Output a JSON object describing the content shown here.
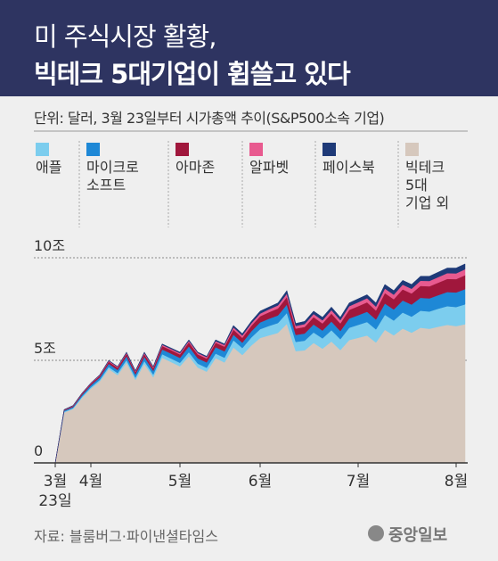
{
  "title": "미 주식시장 활황,",
  "subtitle": "빅테크 5대기업이 휩쓸고 있다",
  "chart_data": {
    "type": "stacked_area",
    "note": "단위: 달러, 3월 23일부터 시가총액 추이(S&P500소속 기업)",
    "categories": [
      "3월\n23일",
      null,
      null,
      null,
      "4월",
      null,
      null,
      null,
      null,
      null,
      null,
      null,
      null,
      null,
      "5월",
      null,
      null,
      null,
      null,
      null,
      null,
      null,
      null,
      "6월",
      null,
      null,
      null,
      null,
      null,
      null,
      null,
      null,
      null,
      null,
      "7월",
      null,
      null,
      null,
      null,
      null,
      null,
      null,
      null,
      null,
      null,
      "8월",
      null
    ],
    "series": [
      {
        "name": "애플",
        "color": "#7ccdee",
        "values": [
          0,
          0.04,
          0.04,
          0.06,
          0.07,
          0.08,
          0.1,
          0.1,
          0.13,
          0.11,
          0.14,
          0.13,
          0.17,
          0.17,
          0.17,
          0.2,
          0.19,
          0.19,
          0.22,
          0.23,
          0.35,
          0.34,
          0.39,
          0.43,
          0.46,
          0.48,
          0.53,
          0.45,
          0.47,
          0.51,
          0.5,
          0.55,
          0.53,
          0.6,
          0.63,
          0.66,
          0.64,
          0.73,
          0.72,
          0.78,
          0.78,
          0.83,
          0.84,
          0.88,
          0.91,
          0.93,
          0.97
        ]
      },
      {
        "name": "마이크로\n소프트",
        "color": "#1e88d6",
        "values": [
          0,
          0.05,
          0.06,
          0.08,
          0.1,
          0.12,
          0.15,
          0.15,
          0.18,
          0.16,
          0.2,
          0.18,
          0.23,
          0.24,
          0.24,
          0.28,
          0.26,
          0.26,
          0.31,
          0.31,
          0.27,
          0.26,
          0.3,
          0.33,
          0.35,
          0.37,
          0.41,
          0.34,
          0.35,
          0.39,
          0.38,
          0.42,
          0.4,
          0.45,
          0.47,
          0.5,
          0.48,
          0.55,
          0.54,
          0.59,
          0.59,
          0.63,
          0.64,
          0.66,
          0.69,
          0.71,
          0.74
        ]
      },
      {
        "name": "아마존",
        "color": "#a0173c",
        "values": [
          0,
          0.03,
          0.04,
          0.06,
          0.07,
          0.08,
          0.11,
          0.11,
          0.13,
          0.11,
          0.14,
          0.13,
          0.17,
          0.17,
          0.17,
          0.2,
          0.19,
          0.19,
          0.22,
          0.23,
          0.25,
          0.24,
          0.27,
          0.3,
          0.32,
          0.34,
          0.37,
          0.31,
          0.32,
          0.36,
          0.35,
          0.39,
          0.37,
          0.42,
          0.44,
          0.46,
          0.44,
          0.51,
          0.5,
          0.54,
          0.54,
          0.58,
          0.59,
          0.61,
          0.64,
          0.65,
          0.68
        ]
      },
      {
        "name": "알파벳",
        "color": "#e85a8f",
        "values": [
          0,
          0.01,
          0.02,
          0.02,
          0.03,
          0.03,
          0.04,
          0.04,
          0.04,
          0.04,
          0.05,
          0.05,
          0.06,
          0.06,
          0.06,
          0.07,
          0.07,
          0.07,
          0.08,
          0.08,
          0.11,
          0.11,
          0.12,
          0.13,
          0.14,
          0.15,
          0.16,
          0.13,
          0.14,
          0.15,
          0.15,
          0.17,
          0.16,
          0.18,
          0.19,
          0.2,
          0.19,
          0.22,
          0.22,
          0.23,
          0.23,
          0.25,
          0.26,
          0.27,
          0.28,
          0.28,
          0.29
        ]
      },
      {
        "name": "페이스북",
        "color": "#1e3a78",
        "values": [
          0,
          0.01,
          0.01,
          0.01,
          0.01,
          0.02,
          0.02,
          0.02,
          0.03,
          0.03,
          0.04,
          0.03,
          0.04,
          0.04,
          0.05,
          0.05,
          0.04,
          0.04,
          0.06,
          0.05,
          0.09,
          0.09,
          0.1,
          0.12,
          0.11,
          0.12,
          0.15,
          0.12,
          0.13,
          0.14,
          0.15,
          0.15,
          0.14,
          0.16,
          0.17,
          0.17,
          0.18,
          0.2,
          0.2,
          0.21,
          0.21,
          0.22,
          0.23,
          0.24,
          0.25,
          0.26,
          0.26
        ]
      },
      {
        "name": "빅테크\n5대\n기업 외",
        "color": "#d6c8bd",
        "values": [
          0,
          2.46,
          2.63,
          3.17,
          3.62,
          3.97,
          4.58,
          4.28,
          4.89,
          4.05,
          4.83,
          4.18,
          5.13,
          4.92,
          4.71,
          5.2,
          4.65,
          4.45,
          5.11,
          4.9,
          5.63,
          5.26,
          5.72,
          6.09,
          6.22,
          6.34,
          6.78,
          5.45,
          5.49,
          5.85,
          5.57,
          5.92,
          5.5,
          5.99,
          6.1,
          6.21,
          5.87,
          6.49,
          6.22,
          6.55,
          6.35,
          6.59,
          6.54,
          6.64,
          6.73,
          6.67,
          6.76
        ]
      }
    ],
    "ylim": [
      0,
      11
    ],
    "yticks": [
      0,
      {
        "value": 5,
        "label": "5조"
      },
      {
        "value": 10,
        "label": "10조"
      }
    ],
    "grid": true,
    "source": "자료: 블룸버그·파이낸셜타임스",
    "brand": "중앙일보"
  }
}
